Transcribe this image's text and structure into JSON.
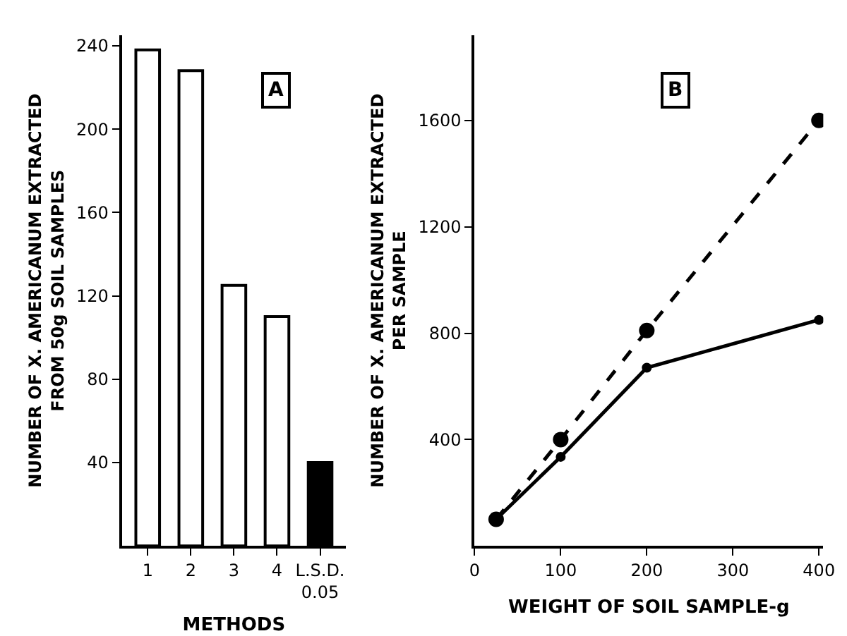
{
  "chart_data": [
    {
      "type": "bar",
      "title": "A",
      "xlabel": "METHODS",
      "ylabel": "NUMBER OF X. AMERICANUM EXTRACTED\nFROM 50g SOIL SAMPLES",
      "categories": [
        "1",
        "2",
        "3",
        "4",
        "L.S.D.\n0.05"
      ],
      "values": [
        238,
        228,
        125,
        110,
        40
      ],
      "colors": [
        "#ffffff",
        "#ffffff",
        "#ffffff",
        "#ffffff",
        "#000000"
      ],
      "ylim": [
        0,
        245
      ],
      "yticks": [
        40,
        80,
        120,
        160,
        200,
        240
      ]
    },
    {
      "type": "line",
      "title": "B",
      "xlabel": "WEIGHT OF SOIL SAMPLE-g",
      "ylabel": "NUMBER OF X. AMERICANUM EXTRACTED\nPER SAMPLE",
      "x": [
        25,
        100,
        200,
        400
      ],
      "series": [
        {
          "color": "#000000",
          "values": [
            100,
            400,
            810,
            1600
          ],
          "line_style": "dashed"
        },
        {
          "color": "#000000",
          "values": [
            100,
            335,
            670,
            850
          ],
          "line_style": "solid"
        }
      ],
      "xlim": [
        0,
        405
      ],
      "xticks": [
        0,
        100,
        200,
        300,
        400
      ],
      "ylim": [
        0,
        1920
      ],
      "yticks": [
        400,
        800,
        1200,
        1600
      ],
      "marker": "circle"
    }
  ]
}
